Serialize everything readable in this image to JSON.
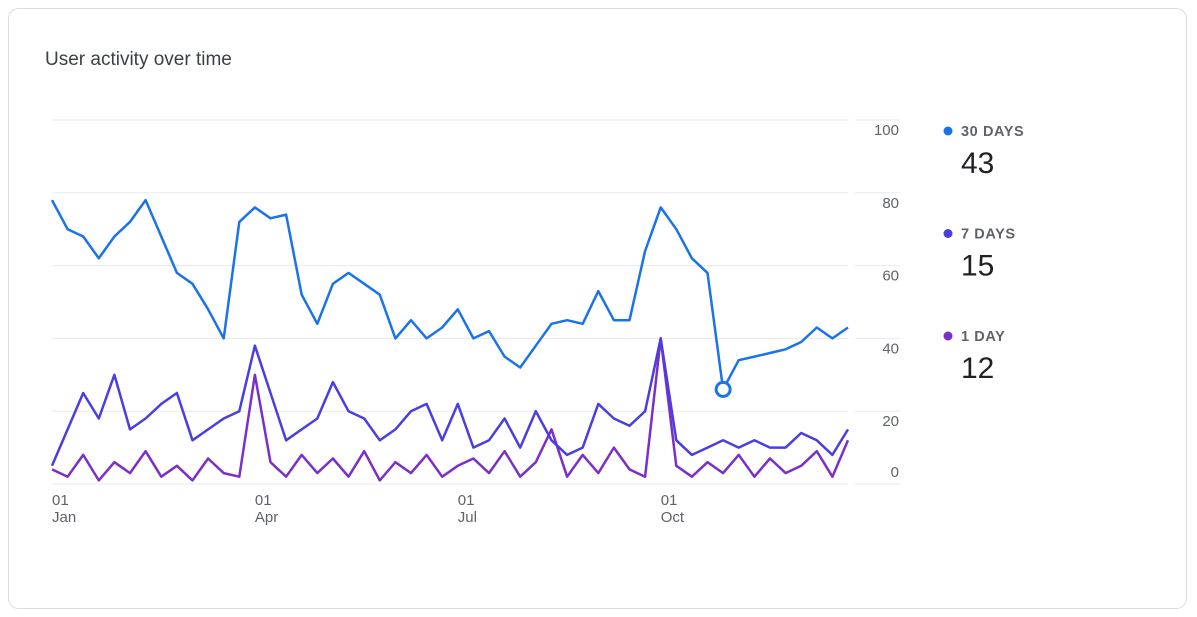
{
  "chart_data": {
    "type": "line",
    "title": "User activity over time",
    "categories": [
      "01\nJan",
      null,
      null,
      null,
      null,
      null,
      null,
      null,
      null,
      null,
      null,
      null,
      null,
      "01\nApr",
      null,
      null,
      null,
      null,
      null,
      null,
      null,
      null,
      null,
      null,
      null,
      null,
      "01\nJul",
      null,
      null,
      null,
      null,
      null,
      null,
      null,
      null,
      null,
      null,
      null,
      null,
      "01\nOct",
      null,
      null,
      null,
      null,
      null,
      null,
      null,
      null,
      null,
      null,
      null,
      null
    ],
    "series": [
      {
        "name": "30 DAYS",
        "color": "#1a73e8",
        "values": [
          78,
          70,
          68,
          62,
          68,
          72,
          78,
          68,
          58,
          55,
          48,
          40,
          72,
          76,
          73,
          74,
          52,
          44,
          55,
          58,
          55,
          52,
          40,
          45,
          40,
          43,
          48,
          40,
          42,
          35,
          32,
          38,
          44,
          45,
          44,
          53,
          45,
          45,
          64,
          76,
          70,
          62,
          58,
          26,
          34,
          35,
          36,
          37,
          39,
          43,
          40,
          43
        ]
      },
      {
        "name": "7 DAYS",
        "color": "#4a3ee0",
        "values": [
          5,
          15,
          25,
          18,
          30,
          15,
          18,
          22,
          25,
          12,
          15,
          18,
          20,
          38,
          25,
          12,
          15,
          18,
          28,
          20,
          18,
          12,
          15,
          20,
          22,
          12,
          22,
          10,
          12,
          18,
          10,
          20,
          12,
          8,
          10,
          22,
          18,
          16,
          20,
          40,
          12,
          8,
          10,
          12,
          10,
          12,
          10,
          10,
          14,
          12,
          8,
          15
        ]
      },
      {
        "name": "1 DAY",
        "color": "#7b2fc9",
        "values": [
          4,
          2,
          8,
          1,
          6,
          3,
          9,
          2,
          5,
          1,
          7,
          3,
          2,
          30,
          6,
          2,
          8,
          3,
          7,
          2,
          9,
          1,
          6,
          3,
          8,
          2,
          5,
          7,
          3,
          9,
          2,
          6,
          15,
          2,
          8,
          3,
          10,
          4,
          2,
          40,
          5,
          2,
          6,
          3,
          8,
          2,
          7,
          3,
          5,
          9,
          2,
          12
        ]
      }
    ],
    "ylim": [
      0,
      100
    ],
    "yticks": [
      0,
      20,
      40,
      60,
      80,
      100
    ],
    "grid": true,
    "highlight": {
      "series": 0,
      "index": 43
    }
  }
}
